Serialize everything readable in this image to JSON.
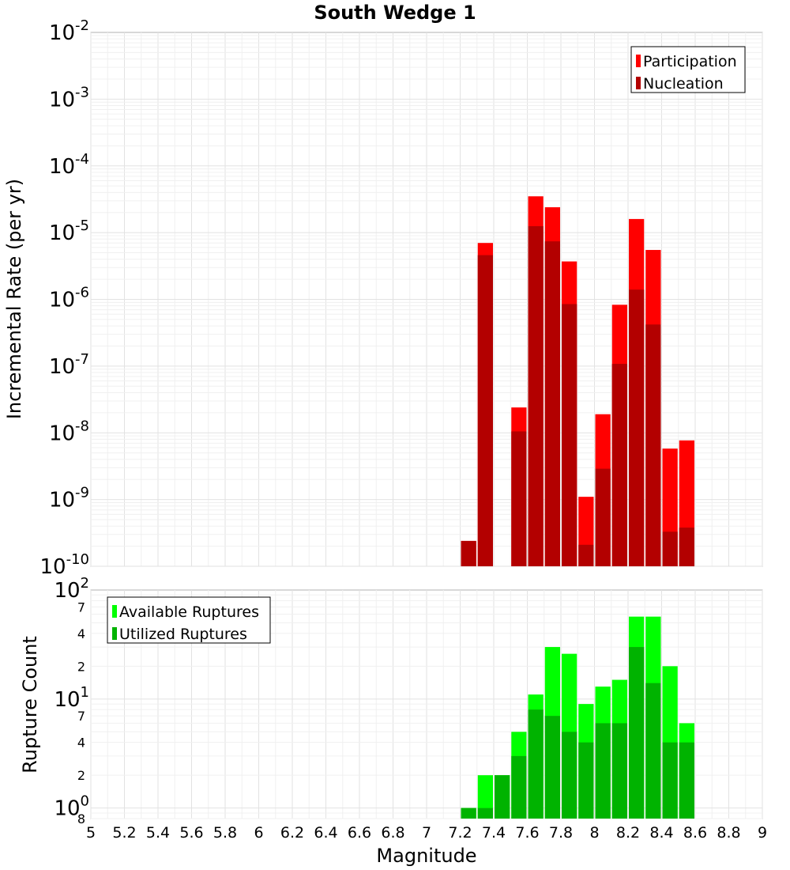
{
  "chart_data": [
    {
      "type": "bar",
      "panel": "top",
      "title": "South Wedge 1",
      "ylabel": "Incremental Rate (per yr)",
      "yscale": "log",
      "ylim": [
        1e-10,
        0.01
      ],
      "y_decade_exponents": [
        -10,
        -9,
        -8,
        -7,
        -6,
        -5,
        -4,
        -3,
        -2
      ],
      "xlim": [
        5,
        9
      ],
      "grid": true,
      "legend_position": "top-right",
      "x": [
        7.25,
        7.35,
        7.45,
        7.55,
        7.65,
        7.75,
        7.85,
        7.95,
        8.05,
        8.15,
        8.25,
        8.35,
        8.45,
        8.55
      ],
      "series": [
        {
          "name": "Participation",
          "color": "#ff0000",
          "values": [
            2.4e-10,
            7e-06,
            null,
            2.4e-08,
            3.5e-05,
            2.4e-05,
            3.7e-06,
            1.1e-09,
            1.9e-08,
            8.3e-07,
            1.6e-05,
            5.5e-06,
            5.8e-09,
            7.7e-09
          ]
        },
        {
          "name": "Nucleation",
          "color": "#b30000",
          "values": [
            2.4e-10,
            4.6e-06,
            null,
            1.05e-08,
            1.25e-05,
            7.4e-06,
            8.5e-07,
            2.1e-10,
            2.9e-09,
            1.08e-07,
            1.4e-06,
            4.2e-07,
            3.3e-10,
            3.8e-10
          ]
        }
      ]
    },
    {
      "type": "bar",
      "panel": "bottom",
      "xlabel": "Magnitude",
      "ylabel": "Rupture Count",
      "yscale": "log",
      "ylim": [
        0.8,
        100
      ],
      "x_ticks": [
        "5",
        "5.2",
        "5.4",
        "5.6",
        "5.8",
        "6",
        "6.2",
        "6.4",
        "6.6",
        "6.8",
        "7",
        "7.2",
        "7.4",
        "7.6",
        "7.8",
        "8",
        "8.2",
        "8.4",
        "8.6",
        "8.8",
        "9"
      ],
      "y_ticks": [
        {
          "value": 100,
          "base": "10",
          "exp": "2",
          "size": "major"
        },
        {
          "value": 70,
          "base": "7",
          "exp": "",
          "size": "minor"
        },
        {
          "value": 40,
          "base": "4",
          "exp": "",
          "size": "minor"
        },
        {
          "value": 20,
          "base": "2",
          "exp": "",
          "size": "minor"
        },
        {
          "value": 10,
          "base": "10",
          "exp": "1",
          "size": "major"
        },
        {
          "value": 7,
          "base": "7",
          "exp": "",
          "size": "minor"
        },
        {
          "value": 4,
          "base": "4",
          "exp": "",
          "size": "minor"
        },
        {
          "value": 2,
          "base": "2",
          "exp": "",
          "size": "minor"
        },
        {
          "value": 1,
          "base": "10",
          "exp": "0",
          "size": "major"
        },
        {
          "value": 0.8,
          "base": "8",
          "exp": "",
          "size": "minor"
        }
      ],
      "xlim": [
        5,
        9
      ],
      "grid": true,
      "legend_position": "top-left",
      "x": [
        7.25,
        7.35,
        7.45,
        7.55,
        7.65,
        7.75,
        7.85,
        7.95,
        8.05,
        8.15,
        8.25,
        8.35,
        8.45,
        8.55
      ],
      "series": [
        {
          "name": "Available Ruptures",
          "color": "#00ff00",
          "values": [
            1,
            2,
            2,
            5,
            11,
            30,
            26,
            9,
            13,
            15,
            57,
            57,
            20,
            6
          ]
        },
        {
          "name": "Utilized Ruptures",
          "color": "#00b300",
          "values": [
            1,
            1,
            2,
            3,
            8,
            7,
            5,
            4,
            6,
            6,
            30,
            14,
            4,
            4
          ]
        }
      ]
    }
  ]
}
